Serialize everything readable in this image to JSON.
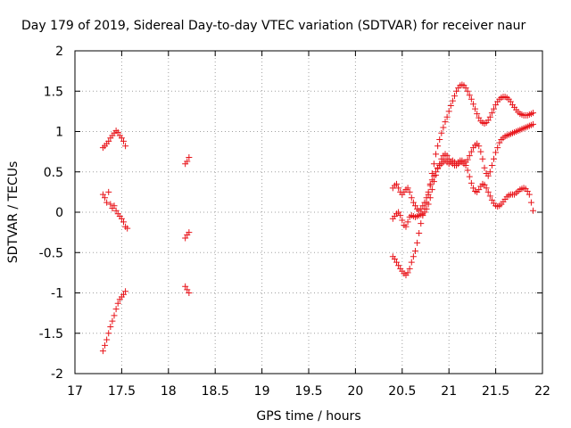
{
  "chart_data": {
    "type": "scatter",
    "title": "Day 179 of 2019, Sidereal Day-to-day VTEC variation (SDTVAR) for receiver naur",
    "xlabel": "GPS time / hours",
    "ylabel": "SDTVAR / TECUs",
    "xlim": [
      17,
      22
    ],
    "ylim": [
      -2,
      2
    ],
    "xticks": [
      "17",
      "17.5",
      "18",
      "18.5",
      "19",
      "19.5",
      "20",
      "20.5",
      "21",
      "21.5",
      "22"
    ],
    "xtick_values": [
      17,
      17.5,
      18,
      18.5,
      19,
      19.5,
      20,
      20.5,
      21,
      21.5,
      22
    ],
    "yticks": [
      "-2",
      "-1.5",
      "-1",
      "-0.5",
      "0",
      "0.5",
      "1",
      "1.5",
      "2"
    ],
    "ytick_values": [
      -2,
      -1.5,
      -1,
      -0.5,
      0,
      0.5,
      1,
      1.5,
      2
    ],
    "grid": true,
    "marker": "+",
    "marker_color": "#e8141a",
    "series": [
      {
        "name": "s1",
        "points": [
          [
            17.3,
            0.8
          ],
          [
            17.32,
            0.82
          ],
          [
            17.34,
            0.85
          ],
          [
            17.36,
            0.88
          ],
          [
            17.38,
            0.92
          ],
          [
            17.4,
            0.95
          ],
          [
            17.42,
            0.98
          ],
          [
            17.44,
            1.01
          ],
          [
            17.46,
            0.99
          ],
          [
            17.48,
            0.95
          ],
          [
            17.5,
            0.92
          ],
          [
            17.52,
            0.88
          ],
          [
            17.54,
            0.82
          ],
          [
            17.3,
            0.22
          ],
          [
            17.32,
            0.18
          ],
          [
            17.34,
            0.12
          ],
          [
            17.36,
            0.25
          ],
          [
            17.38,
            0.1
          ],
          [
            17.4,
            0.05
          ],
          [
            17.42,
            0.08
          ],
          [
            17.44,
            0.02
          ],
          [
            17.46,
            -0.02
          ],
          [
            17.48,
            -0.05
          ],
          [
            17.5,
            -0.08
          ],
          [
            17.52,
            -0.12
          ],
          [
            17.54,
            -0.18
          ],
          [
            17.56,
            -0.2
          ],
          [
            17.3,
            -1.72
          ],
          [
            17.32,
            -1.65
          ],
          [
            17.34,
            -1.58
          ],
          [
            17.36,
            -1.5
          ],
          [
            17.38,
            -1.42
          ],
          [
            17.4,
            -1.35
          ],
          [
            17.42,
            -1.28
          ],
          [
            17.44,
            -1.2
          ],
          [
            17.46,
            -1.13
          ],
          [
            17.48,
            -1.08
          ],
          [
            17.5,
            -1.05
          ],
          [
            17.52,
            -1.02
          ],
          [
            17.54,
            -0.98
          ],
          [
            18.18,
            0.6
          ],
          [
            18.2,
            0.63
          ],
          [
            18.22,
            0.68
          ],
          [
            18.18,
            -0.92
          ],
          [
            18.2,
            -0.96
          ],
          [
            18.22,
            -1.0
          ],
          [
            18.18,
            -0.32
          ],
          [
            18.2,
            -0.28
          ],
          [
            18.22,
            -0.25
          ],
          [
            20.4,
            0.3
          ],
          [
            20.42,
            0.33
          ],
          [
            20.44,
            0.35
          ],
          [
            20.46,
            0.3
          ],
          [
            20.48,
            0.25
          ],
          [
            20.5,
            0.22
          ],
          [
            20.52,
            0.25
          ],
          [
            20.54,
            0.28
          ],
          [
            20.56,
            0.3
          ],
          [
            20.58,
            0.25
          ],
          [
            20.6,
            0.18
          ],
          [
            20.62,
            0.12
          ],
          [
            20.64,
            0.08
          ],
          [
            20.66,
            0.04
          ],
          [
            20.68,
            0.02
          ],
          [
            20.7,
            0.04
          ],
          [
            20.72,
            0.08
          ],
          [
            20.74,
            0.12
          ],
          [
            20.76,
            0.18
          ],
          [
            20.78,
            0.25
          ],
          [
            20.8,
            0.33
          ],
          [
            20.82,
            0.4
          ],
          [
            20.84,
            0.45
          ],
          [
            20.86,
            0.5
          ],
          [
            20.88,
            0.55
          ],
          [
            20.9,
            0.58
          ],
          [
            20.92,
            0.6
          ],
          [
            20.94,
            0.62
          ],
          [
            20.96,
            0.64
          ],
          [
            20.98,
            0.62
          ],
          [
            21.0,
            0.6
          ],
          [
            21.02,
            0.62
          ],
          [
            21.04,
            0.64
          ],
          [
            21.06,
            0.62
          ],
          [
            21.08,
            0.6
          ],
          [
            21.1,
            0.62
          ],
          [
            21.12,
            0.64
          ],
          [
            21.14,
            0.62
          ],
          [
            21.16,
            0.6
          ],
          [
            21.18,
            0.62
          ],
          [
            21.2,
            0.65
          ],
          [
            21.22,
            0.7
          ],
          [
            21.24,
            0.75
          ],
          [
            21.26,
            0.8
          ],
          [
            21.28,
            0.83
          ],
          [
            21.3,
            0.85
          ],
          [
            21.32,
            0.82
          ],
          [
            21.34,
            0.75
          ],
          [
            21.36,
            0.66
          ],
          [
            21.38,
            0.55
          ],
          [
            21.4,
            0.48
          ],
          [
            21.42,
            0.45
          ],
          [
            21.44,
            0.5
          ],
          [
            21.46,
            0.58
          ],
          [
            21.48,
            0.66
          ],
          [
            21.5,
            0.74
          ],
          [
            21.52,
            0.8
          ],
          [
            21.54,
            0.86
          ],
          [
            21.56,
            0.9
          ],
          [
            21.58,
            0.92
          ],
          [
            21.6,
            0.94
          ],
          [
            21.62,
            0.95
          ],
          [
            21.64,
            0.96
          ],
          [
            21.66,
            0.97
          ],
          [
            21.68,
            0.98
          ],
          [
            21.7,
            0.99
          ],
          [
            21.72,
            1.0
          ],
          [
            21.74,
            1.01
          ],
          [
            21.76,
            1.02
          ],
          [
            21.78,
            1.03
          ],
          [
            21.8,
            1.04
          ],
          [
            21.82,
            1.05
          ],
          [
            21.84,
            1.06
          ],
          [
            21.86,
            1.07
          ],
          [
            21.88,
            1.08
          ],
          [
            21.9,
            1.09
          ]
        ]
      },
      {
        "name": "s2",
        "points": [
          [
            20.4,
            -0.55
          ],
          [
            20.42,
            -0.58
          ],
          [
            20.44,
            -0.62
          ],
          [
            20.46,
            -0.66
          ],
          [
            20.48,
            -0.7
          ],
          [
            20.5,
            -0.73
          ],
          [
            20.52,
            -0.76
          ],
          [
            20.54,
            -0.78
          ],
          [
            20.56,
            -0.75
          ],
          [
            20.58,
            -0.7
          ],
          [
            20.6,
            -0.62
          ],
          [
            20.62,
            -0.55
          ],
          [
            20.64,
            -0.48
          ],
          [
            20.66,
            -0.38
          ],
          [
            20.68,
            -0.26
          ],
          [
            20.7,
            -0.14
          ],
          [
            20.72,
            -0.04
          ],
          [
            20.74,
            0.04
          ],
          [
            20.76,
            0.12
          ],
          [
            20.78,
            0.22
          ],
          [
            20.8,
            0.35
          ],
          [
            20.82,
            0.48
          ],
          [
            20.84,
            0.6
          ],
          [
            20.86,
            0.72
          ],
          [
            20.88,
            0.82
          ],
          [
            20.9,
            0.9
          ],
          [
            20.92,
            0.98
          ],
          [
            20.94,
            1.05
          ],
          [
            20.96,
            1.12
          ],
          [
            20.98,
            1.18
          ],
          [
            21.0,
            1.25
          ],
          [
            21.02,
            1.32
          ],
          [
            21.04,
            1.38
          ],
          [
            21.06,
            1.44
          ],
          [
            21.08,
            1.5
          ],
          [
            21.1,
            1.54
          ],
          [
            21.12,
            1.57
          ],
          [
            21.14,
            1.58
          ],
          [
            21.16,
            1.57
          ],
          [
            21.18,
            1.54
          ],
          [
            21.2,
            1.5
          ],
          [
            21.22,
            1.45
          ],
          [
            21.24,
            1.4
          ],
          [
            21.26,
            1.34
          ],
          [
            21.28,
            1.28
          ],
          [
            21.3,
            1.22
          ],
          [
            21.32,
            1.17
          ],
          [
            21.34,
            1.13
          ],
          [
            21.36,
            1.11
          ],
          [
            21.38,
            1.1
          ],
          [
            21.4,
            1.11
          ],
          [
            21.42,
            1.14
          ],
          [
            21.44,
            1.18
          ],
          [
            21.46,
            1.23
          ],
          [
            21.48,
            1.28
          ],
          [
            21.5,
            1.33
          ],
          [
            21.52,
            1.37
          ],
          [
            21.54,
            1.4
          ],
          [
            21.56,
            1.42
          ],
          [
            21.58,
            1.43
          ],
          [
            21.6,
            1.43
          ],
          [
            21.62,
            1.42
          ],
          [
            21.64,
            1.4
          ],
          [
            21.66,
            1.37
          ],
          [
            21.68,
            1.33
          ],
          [
            21.7,
            1.3
          ],
          [
            21.72,
            1.27
          ],
          [
            21.74,
            1.24
          ],
          [
            21.76,
            1.22
          ],
          [
            21.78,
            1.21
          ],
          [
            21.8,
            1.2
          ],
          [
            21.82,
            1.2
          ],
          [
            21.84,
            1.2
          ],
          [
            21.86,
            1.21
          ],
          [
            21.88,
            1.22
          ],
          [
            21.9,
            1.23
          ]
        ]
      },
      {
        "name": "s3",
        "points": [
          [
            20.4,
            -0.08
          ],
          [
            20.42,
            -0.05
          ],
          [
            20.44,
            -0.02
          ],
          [
            20.46,
            0.0
          ],
          [
            20.48,
            -0.04
          ],
          [
            20.5,
            -0.1
          ],
          [
            20.52,
            -0.16
          ],
          [
            20.54,
            -0.18
          ],
          [
            20.56,
            -0.12
          ],
          [
            20.58,
            -0.06
          ],
          [
            20.6,
            -0.04
          ],
          [
            20.62,
            -0.05
          ],
          [
            20.64,
            -0.06
          ],
          [
            20.66,
            -0.05
          ],
          [
            20.68,
            -0.04
          ],
          [
            20.7,
            -0.03
          ],
          [
            20.72,
            -0.02
          ],
          [
            20.74,
            0.0
          ],
          [
            20.76,
            0.04
          ],
          [
            20.78,
            0.1
          ],
          [
            20.8,
            0.18
          ],
          [
            20.82,
            0.28
          ],
          [
            20.84,
            0.38
          ],
          [
            20.86,
            0.46
          ],
          [
            20.88,
            0.54
          ],
          [
            20.9,
            0.6
          ],
          [
            20.92,
            0.66
          ],
          [
            20.94,
            0.7
          ],
          [
            20.96,
            0.72
          ],
          [
            20.98,
            0.7
          ],
          [
            21.0,
            0.66
          ],
          [
            21.02,
            0.62
          ],
          [
            21.04,
            0.6
          ],
          [
            21.06,
            0.58
          ],
          [
            21.08,
            0.58
          ],
          [
            21.1,
            0.6
          ],
          [
            21.12,
            0.62
          ],
          [
            21.14,
            0.64
          ],
          [
            21.16,
            0.62
          ],
          [
            21.18,
            0.58
          ],
          [
            21.2,
            0.52
          ],
          [
            21.22,
            0.44
          ],
          [
            21.24,
            0.36
          ],
          [
            21.26,
            0.3
          ],
          [
            21.28,
            0.26
          ],
          [
            21.3,
            0.25
          ],
          [
            21.32,
            0.28
          ],
          [
            21.34,
            0.32
          ],
          [
            21.36,
            0.35
          ],
          [
            21.38,
            0.34
          ],
          [
            21.4,
            0.3
          ],
          [
            21.42,
            0.25
          ],
          [
            21.44,
            0.2
          ],
          [
            21.46,
            0.15
          ],
          [
            21.48,
            0.11
          ],
          [
            21.5,
            0.08
          ],
          [
            21.52,
            0.07
          ],
          [
            21.54,
            0.08
          ],
          [
            21.56,
            0.1
          ],
          [
            21.58,
            0.13
          ],
          [
            21.6,
            0.16
          ],
          [
            21.62,
            0.19
          ],
          [
            21.64,
            0.21
          ],
          [
            21.66,
            0.22
          ],
          [
            21.68,
            0.22
          ],
          [
            21.7,
            0.22
          ],
          [
            21.72,
            0.24
          ],
          [
            21.74,
            0.26
          ],
          [
            21.76,
            0.28
          ],
          [
            21.78,
            0.29
          ],
          [
            21.8,
            0.3
          ],
          [
            21.82,
            0.29
          ],
          [
            21.84,
            0.26
          ],
          [
            21.86,
            0.22
          ],
          [
            21.88,
            0.12
          ],
          [
            21.9,
            0.02
          ]
        ]
      }
    ]
  }
}
